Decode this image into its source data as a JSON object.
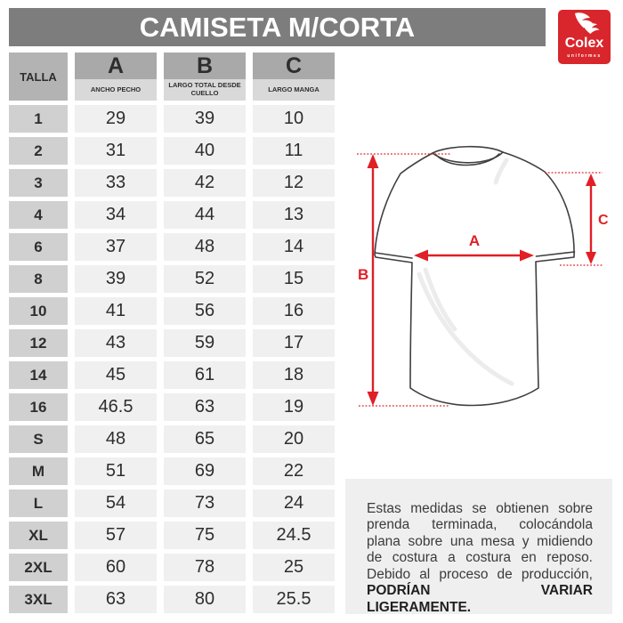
{
  "title_bar": {
    "title": "CAMISETA M/CORTA"
  },
  "logo": {
    "brand": "Colex",
    "tagline": "uniformes",
    "icon": "bird-wings-icon"
  },
  "table": {
    "size_header": "TALLA",
    "columns": [
      {
        "letter": "A",
        "label": "ANCHO PECHO"
      },
      {
        "letter": "B",
        "label": "LARGO TOTAL DESDE CUELLO"
      },
      {
        "letter": "C",
        "label": "LARGO MANGA"
      }
    ],
    "rows": [
      [
        "1",
        "29",
        "39",
        "10"
      ],
      [
        "2",
        "31",
        "40",
        "11"
      ],
      [
        "3",
        "33",
        "42",
        "12"
      ],
      [
        "4",
        "34",
        "44",
        "13"
      ],
      [
        "6",
        "37",
        "48",
        "14"
      ],
      [
        "8",
        "39",
        "52",
        "15"
      ],
      [
        "10",
        "41",
        "56",
        "16"
      ],
      [
        "12",
        "43",
        "59",
        "17"
      ],
      [
        "14",
        "45",
        "61",
        "18"
      ],
      [
        "16",
        "46.5",
        "63",
        "19"
      ],
      [
        "S",
        "48",
        "65",
        "20"
      ],
      [
        "M",
        "51",
        "69",
        "22"
      ],
      [
        "L",
        "54",
        "73",
        "24"
      ],
      [
        "XL",
        "57",
        "75",
        "24.5"
      ],
      [
        "2XL",
        "60",
        "78",
        "25"
      ],
      [
        "3XL",
        "63",
        "80",
        "25.5"
      ]
    ]
  },
  "diagram": {
    "a_label": "A",
    "b_label": "B",
    "c_label": "C"
  },
  "note": {
    "text": "Estas medidas se obtienen sobre prenda terminada, colocándola plana sobre una mesa y midiendo de costura a costura en reposo. Debido al proceso de producción,",
    "emphasis": "PODRÍAN VARIAR LIGERAMENTE."
  },
  "colors": {
    "accent_red": "#e01f26",
    "logo_red": "#d8262c",
    "title_bar_gray": "#7d7d7d",
    "header_gray": "#a9a9a9",
    "subheader_gray": "#d9d9d9",
    "size_cell_gray": "#d0d0d0",
    "value_cell_gray": "#f0f0f0",
    "note_panel_gray": "#efefef"
  }
}
